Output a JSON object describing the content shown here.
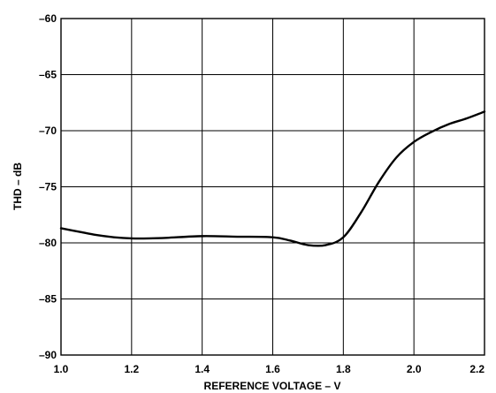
{
  "chart_data": {
    "type": "line",
    "title": "",
    "xlabel": "REFERENCE VOLTAGE – V",
    "ylabel": "THD – dB",
    "xlim": [
      1.0,
      2.2
    ],
    "ylim": [
      -90,
      -60
    ],
    "grid": true,
    "x_ticks": [
      "1.0",
      "1.2",
      "1.4",
      "1.6",
      "1.8",
      "2.0",
      "2.2"
    ],
    "x_tick_values": [
      1.0,
      1.2,
      1.4,
      1.6,
      1.8,
      2.0,
      2.2
    ],
    "y_ticks": [
      "–60",
      "–65",
      "–70",
      "–75",
      "–80",
      "–85",
      "–90"
    ],
    "y_tick_values": [
      -60,
      -65,
      -70,
      -75,
      -80,
      -85,
      -90
    ],
    "series": [
      {
        "x": [
          1.0,
          1.05,
          1.1,
          1.15,
          1.2,
          1.25,
          1.3,
          1.4,
          1.5,
          1.6,
          1.65,
          1.7,
          1.75,
          1.8,
          1.85,
          1.9,
          1.95,
          2.0,
          2.05,
          2.1,
          2.15,
          2.2
        ],
        "y": [
          -78.7,
          -79.0,
          -79.3,
          -79.5,
          -79.6,
          -79.6,
          -79.55,
          -79.4,
          -79.45,
          -79.5,
          -79.8,
          -80.2,
          -80.2,
          -79.5,
          -77.3,
          -74.6,
          -72.4,
          -71.0,
          -70.1,
          -69.4,
          -68.9,
          -68.3
        ]
      }
    ]
  }
}
